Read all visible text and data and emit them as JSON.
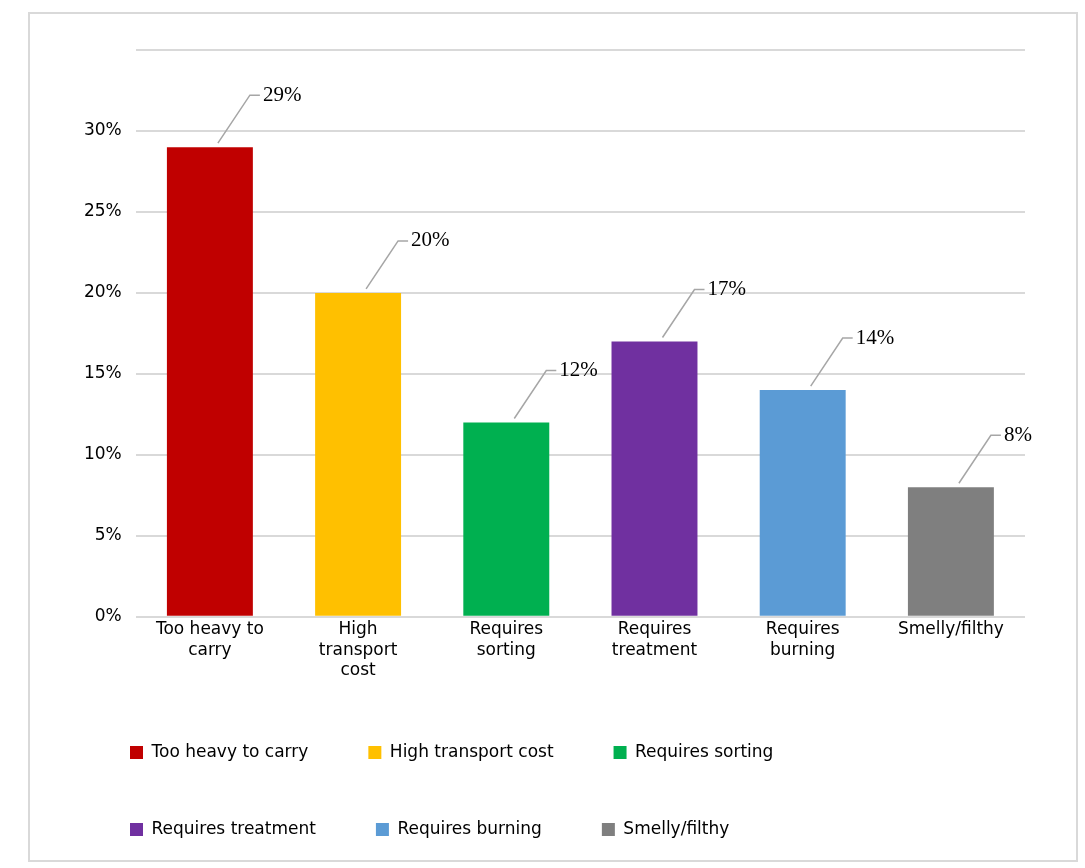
{
  "chart_data": {
    "type": "bar",
    "stacked": true,
    "categories": [
      "Too heavy to carry",
      "High transport cost",
      "Requires sorting",
      "Requires treatment",
      "Requires burning",
      "Smelly/filthy"
    ],
    "series": [
      {
        "name": "Too heavy to carry",
        "color": "#c00000",
        "values": [
          29,
          null,
          null,
          null,
          null,
          null
        ],
        "value_labels": [
          "29%",
          null,
          null,
          null,
          null,
          null
        ]
      },
      {
        "name": "High transport cost",
        "color": "#ffc000",
        "values": [
          null,
          20,
          null,
          null,
          null,
          null
        ],
        "value_labels": [
          null,
          "20%",
          null,
          null,
          null,
          null
        ]
      },
      {
        "name": "Requires sorting",
        "color": "#00b050",
        "values": [
          null,
          null,
          12,
          null,
          null,
          null
        ],
        "value_labels": [
          null,
          null,
          "12%",
          null,
          null,
          null
        ]
      },
      {
        "name": "Requires treatment",
        "color": "#7030a0",
        "values": [
          null,
          null,
          null,
          17,
          null,
          null
        ],
        "value_labels": [
          null,
          null,
          null,
          "17%",
          null,
          null
        ]
      },
      {
        "name": "Requires burning",
        "color": "#5b9bd5",
        "values": [
          null,
          null,
          null,
          null,
          14,
          null
        ],
        "value_labels": [
          null,
          null,
          null,
          null,
          "14%",
          null
        ]
      },
      {
        "name": "Smelly/filthy",
        "color": "#7f7f7f",
        "values": [
          null,
          null,
          null,
          null,
          null,
          8
        ],
        "value_labels": [
          null,
          null,
          null,
          null,
          null,
          "8%"
        ]
      }
    ],
    "ylim": [
      0,
      35
    ],
    "yticks": [
      {
        "value": 0,
        "label": "0%"
      },
      {
        "value": 5,
        "label": "5%"
      },
      {
        "value": 10,
        "label": "10%"
      },
      {
        "value": 15,
        "label": "15%"
      },
      {
        "value": 20,
        "label": "20%"
      },
      {
        "value": 25,
        "label": "25%"
      },
      {
        "value": 30,
        "label": "30%"
      },
      {
        "value": 35,
        "label": null
      }
    ],
    "grid": "y",
    "legend": "bottom"
  }
}
